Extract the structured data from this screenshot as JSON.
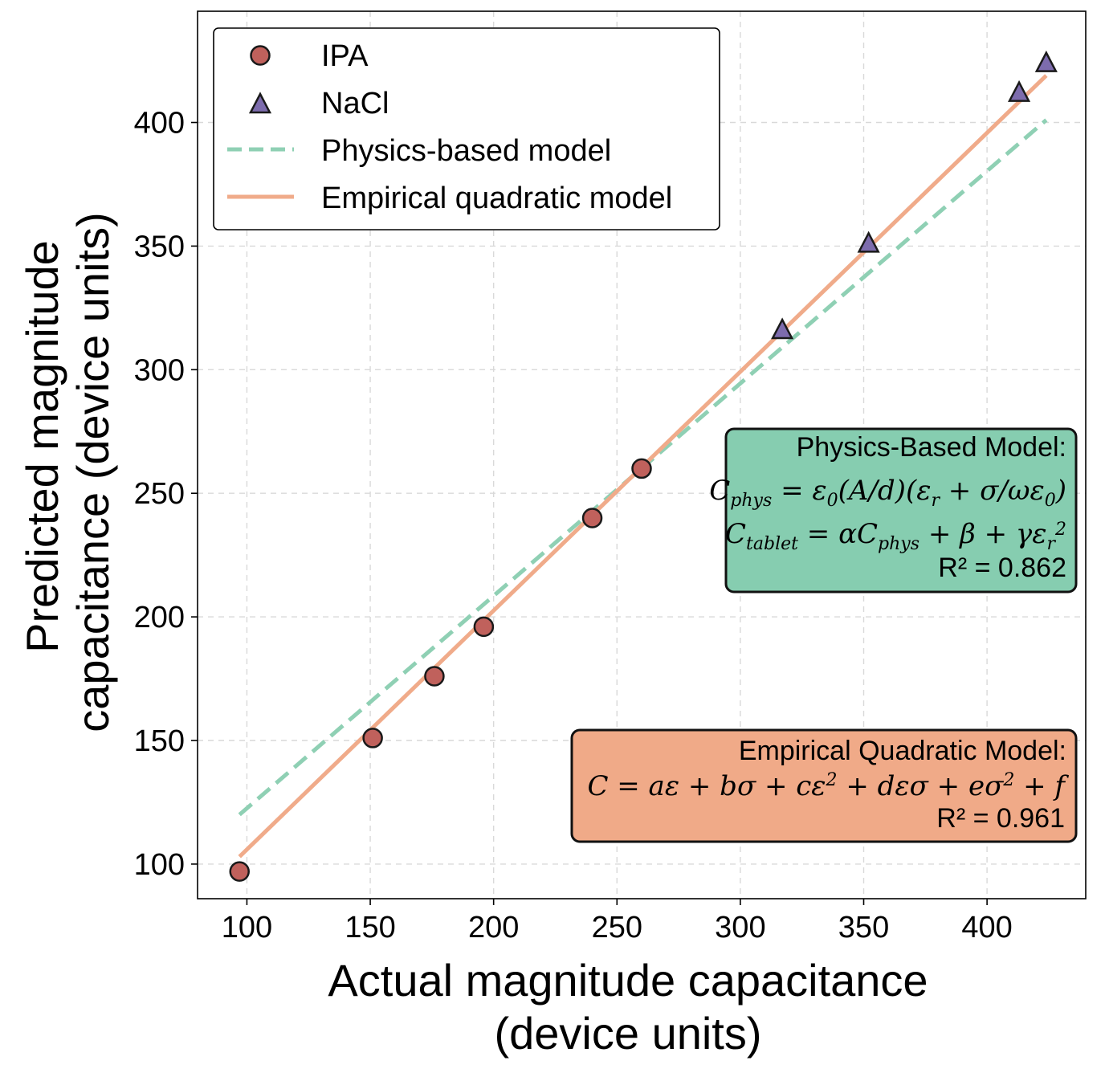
{
  "chart_data": {
    "type": "scatter",
    "xlabel_lines": [
      "Actual magnitude capacitance",
      "(device units)"
    ],
    "ylabel_lines": [
      "Predicted magnitude",
      "capacitance (device units)"
    ],
    "xlim": [
      80,
      440
    ],
    "ylim": [
      86,
      445
    ],
    "xticks": [
      100,
      150,
      200,
      250,
      300,
      350,
      400
    ],
    "yticks": [
      100,
      150,
      200,
      250,
      300,
      350,
      400
    ],
    "grid": true,
    "legend_position": "top-left",
    "series": [
      {
        "name": "IPA",
        "kind": "points",
        "marker": "circle",
        "color": "#c0615c",
        "points": [
          [
            97,
            97
          ],
          [
            151,
            151
          ],
          [
            176,
            176
          ],
          [
            196,
            196
          ],
          [
            240,
            240
          ],
          [
            260,
            260
          ]
        ]
      },
      {
        "name": "NaCl",
        "kind": "points",
        "marker": "triangle",
        "color": "#7d6cad",
        "points": [
          [
            317,
            316
          ],
          [
            352,
            351
          ],
          [
            413,
            412
          ],
          [
            424,
            424
          ]
        ]
      },
      {
        "name": "Physics-based model",
        "kind": "line",
        "style": "dashed",
        "color": "#8fd0b4",
        "x": [
          97,
          424
        ],
        "y": [
          120,
          401
        ]
      },
      {
        "name": "Empirical quadratic model",
        "kind": "line",
        "style": "solid",
        "color": "#f0ab8a",
        "x": [
          97,
          424
        ],
        "y": [
          103,
          419
        ]
      }
    ],
    "annotations": [
      {
        "id": "physics",
        "title": "Physics-Based Model:",
        "r2": "R² = 0.862",
        "color": "#86cdb0"
      },
      {
        "id": "empirical",
        "title": "Empirical Quadratic Model:",
        "r2": "R² = 0.961",
        "color": "#f0aa88"
      }
    ]
  }
}
